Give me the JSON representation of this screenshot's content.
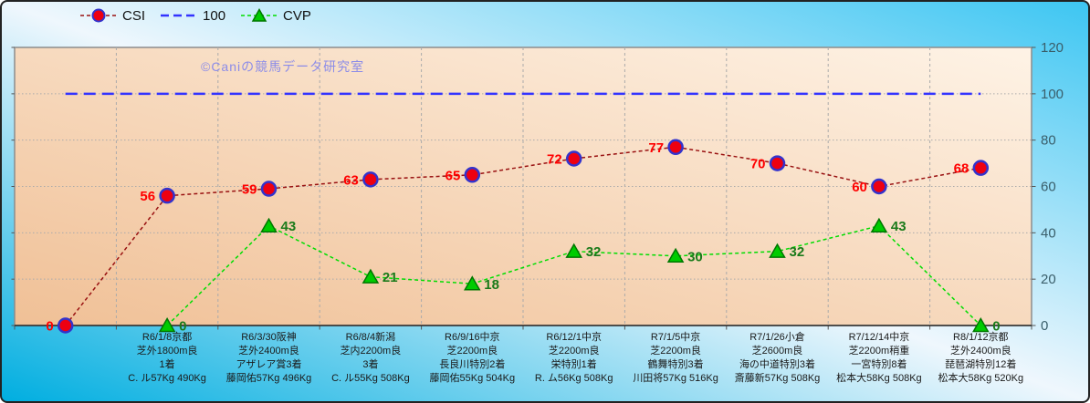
{
  "watermark": "©Caniの競馬データ研究室",
  "legend": {
    "items": [
      {
        "label": "CSI"
      },
      {
        "label": "100"
      },
      {
        "label": "CVP"
      }
    ]
  },
  "colors": {
    "csi_line": "#991111",
    "csi_marker_fill": "#ee0011",
    "csi_marker_border": "#3333cc",
    "csi_label": "#ff0000",
    "hundred_line": "#3333ff",
    "cvp_line": "#00dd00",
    "cvp_marker_fill": "#00cc00",
    "cvp_marker_border": "#007700",
    "cvp_label": "#1a7a1a",
    "y_axis_label": "#3a5e6a",
    "plot_bg_light": "#fef3e6",
    "plot_bg_dark": "#f0c096",
    "plot_border": "#8c8c8c",
    "gridline": "#aaaaaa",
    "axis_line": "#2a2a2a",
    "tick": "#555555",
    "watermark": "#8c8ce8",
    "category_label": "#1a1a1a"
  },
  "chart_data": {
    "type": "line",
    "title": "",
    "grid": true,
    "legend_position": "top",
    "y_axis": {
      "side": "right",
      "min": 0,
      "max": 120,
      "tick_interval": 20,
      "ticks": [
        0,
        20,
        40,
        60,
        80,
        100,
        120
      ]
    },
    "categories": [
      [],
      [
        "R6/1/8京都",
        "芝外1800m良",
        "1着",
        "C. ル57Kg 490Kg"
      ],
      [
        "R6/3/30阪神",
        "芝外2400m良",
        "アザレア賞3着",
        "藤岡佑57Kg 496Kg"
      ],
      [
        "R6/8/4新潟",
        "芝内2200m良",
        "3着",
        "C. ル55Kg 508Kg"
      ],
      [
        "R6/9/16中京",
        "芝2200m良",
        "長良川特別2着",
        "藤岡佑55Kg 504Kg"
      ],
      [
        "R6/12/1中京",
        "芝2200m良",
        "栄特別1着",
        "R. ム56Kg 508Kg"
      ],
      [
        "R7/1/5中京",
        "芝2200m良",
        "鶴舞特別3着",
        "川田将57Kg 516Kg"
      ],
      [
        "R7/1/26小倉",
        "芝2600m良",
        "海の中道特別3着",
        "斎藤新57Kg 508Kg"
      ],
      [
        "R7/12/14中京",
        "芝2200m稍重",
        "一宮特別8着",
        "松本大58Kg 508Kg"
      ],
      [
        "R8/1/12京都",
        "芝外2400m良",
        "琵琶湖特別12着",
        "松本大58Kg 520Kg"
      ]
    ],
    "series": [
      {
        "name": "CSI",
        "marker": "circle",
        "values": [
          0,
          56,
          59,
          63,
          65,
          72,
          77,
          70,
          60,
          68
        ]
      },
      {
        "name": "100",
        "marker": "none",
        "values": [
          100,
          100,
          100,
          100,
          100,
          100,
          100,
          100,
          100,
          100
        ]
      },
      {
        "name": "CVP",
        "marker": "triangle",
        "values": [
          null,
          0,
          43,
          21,
          18,
          32,
          30,
          32,
          43,
          0
        ]
      }
    ]
  }
}
